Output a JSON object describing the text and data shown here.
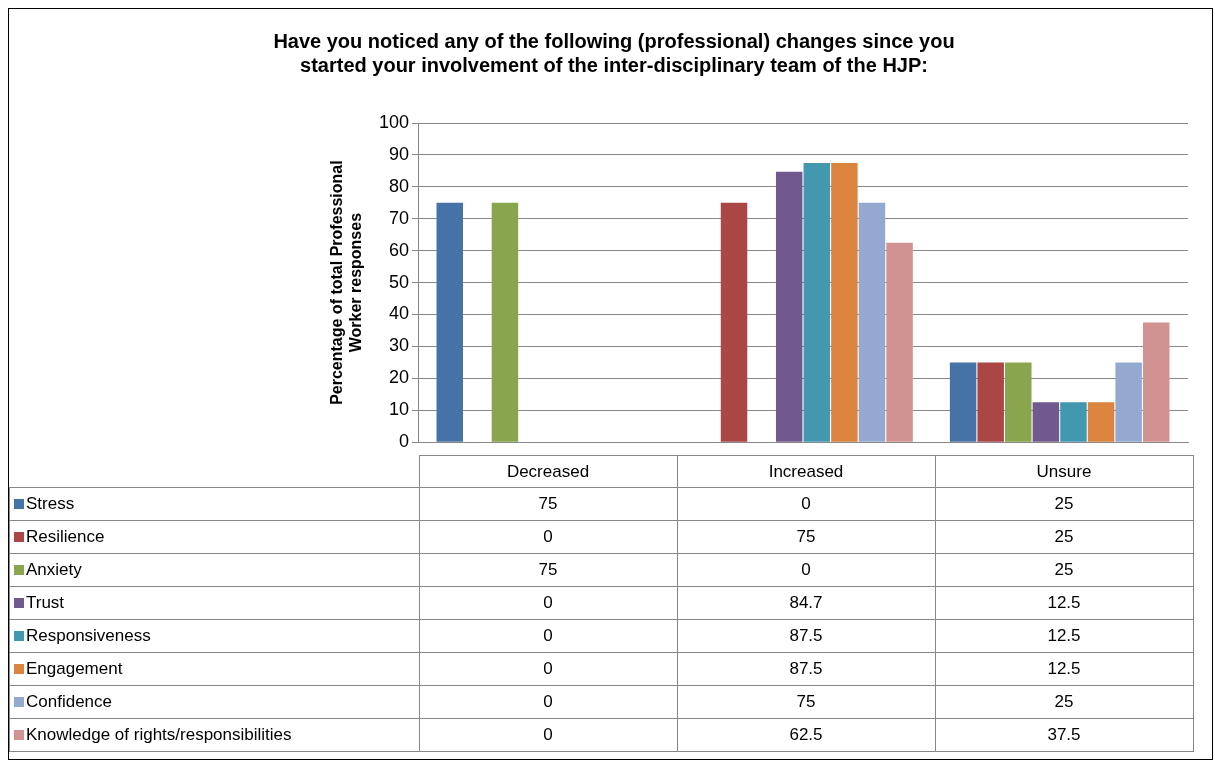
{
  "chart_data": {
    "type": "bar",
    "title": "Have you noticed any of the following (professional) changes since you started your involvement of the inter-disciplinary team of the HJP:",
    "ylabel": "Percentage of total Professional Worker responses",
    "categories": [
      "Decreased",
      "Increased",
      "Unsure"
    ],
    "series": [
      {
        "name": "Stress",
        "color": "#4572a7",
        "values": [
          75,
          0,
          25
        ]
      },
      {
        "name": "Resilience",
        "color": "#aa4643",
        "values": [
          0,
          75,
          25
        ]
      },
      {
        "name": "Anxiety",
        "color": "#89a54e",
        "values": [
          75,
          0,
          25
        ]
      },
      {
        "name": "Trust",
        "color": "#71588f",
        "values": [
          0,
          84.7,
          12.5
        ]
      },
      {
        "name": "Responsiveness",
        "color": "#4198af",
        "values": [
          0,
          87.5,
          12.5
        ]
      },
      {
        "name": "Engagement",
        "color": "#db843d",
        "values": [
          0,
          87.5,
          12.5
        ]
      },
      {
        "name": "Confidence",
        "color": "#93a9cf",
        "values": [
          0,
          75,
          25
        ]
      },
      {
        "name": "Knowledge of rights/responsibilities",
        "color": "#d19392",
        "values": [
          0,
          62.5,
          37.5
        ]
      }
    ],
    "ylim": [
      0,
      100
    ],
    "yticks": [
      0,
      10,
      20,
      30,
      40,
      50,
      60,
      70,
      80,
      90,
      100
    ],
    "grid": "y",
    "legend": "bottom",
    "data_labels": true
  }
}
